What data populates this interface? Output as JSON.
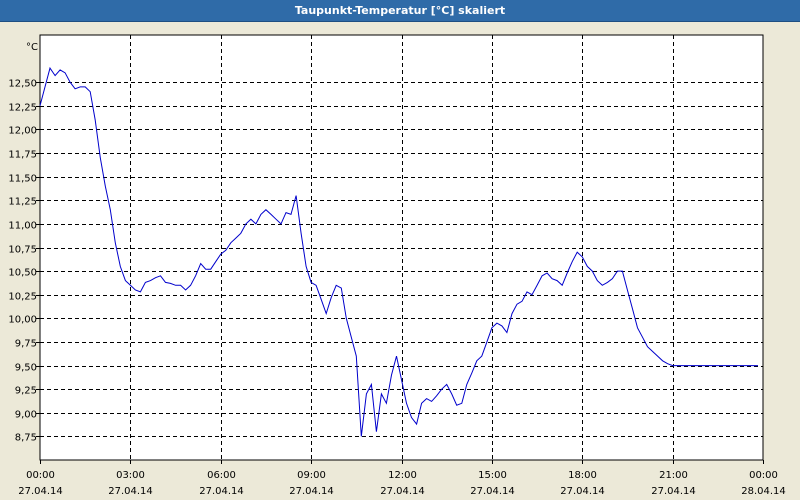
{
  "window": {
    "title": "Taupunkt-Temperatur [°C] skaliert"
  },
  "colors": {
    "title_bar": "#2F6BA8",
    "line": "#0000CC",
    "plot_background": "#FFFFFF",
    "grid": "#000000"
  },
  "chart_data": {
    "type": "line",
    "title": "Taupunkt-Temperatur [°C] skaliert",
    "ylabel": "°C",
    "xlabel": "",
    "ylim": [
      8.5,
      13.0
    ],
    "xlim": [
      "27.04.14 00:00",
      "28.04.14 00:00"
    ],
    "grid": true,
    "y_ticks": [
      "8,75",
      "9,00",
      "9,25",
      "9,50",
      "9,75",
      "10,00",
      "10,25",
      "10,50",
      "10,75",
      "11,00",
      "11,25",
      "11,50",
      "11,75",
      "12,00",
      "12,25",
      "12,50"
    ],
    "x_ticks": [
      {
        "time": "00:00",
        "date": "27.04.14"
      },
      {
        "time": "03:00",
        "date": "27.04.14"
      },
      {
        "time": "06:00",
        "date": "27.04.14"
      },
      {
        "time": "09:00",
        "date": "27.04.14"
      },
      {
        "time": "12:00",
        "date": "27.04.14"
      },
      {
        "time": "15:00",
        "date": "27.04.14"
      },
      {
        "time": "18:00",
        "date": "27.04.14"
      },
      {
        "time": "21:00",
        "date": "27.04.14"
      },
      {
        "time": "00:00",
        "date": "28.04.14"
      }
    ],
    "series": [
      {
        "x": [
          "00:00",
          "00:10",
          "00:20",
          "00:30",
          "00:40",
          "00:50",
          "01:00",
          "01:10",
          "01:20",
          "01:30",
          "01:40",
          "01:50",
          "02:00",
          "02:10",
          "02:20",
          "02:30",
          "02:40",
          "02:50",
          "03:00",
          "03:10",
          "03:20",
          "03:30",
          "03:40",
          "03:50",
          "04:00",
          "04:10",
          "04:20",
          "04:30",
          "04:40",
          "04:50",
          "05:00",
          "05:10",
          "05:20",
          "05:30",
          "05:40",
          "05:50",
          "06:00",
          "06:10",
          "06:20",
          "06:30",
          "06:40",
          "06:50",
          "07:00",
          "07:10",
          "07:20",
          "07:30",
          "07:40",
          "07:50",
          "08:00",
          "08:10",
          "08:20",
          "08:30",
          "08:40",
          "08:50",
          "09:00",
          "09:10",
          "09:20",
          "09:30",
          "09:40",
          "09:50",
          "10:00",
          "10:10",
          "10:20",
          "10:30",
          "10:40",
          "10:50",
          "11:00",
          "11:10",
          "11:20",
          "11:30",
          "11:40",
          "11:50",
          "12:00",
          "12:10",
          "12:20",
          "12:30",
          "12:40",
          "12:50",
          "13:00",
          "13:10",
          "13:20",
          "13:30",
          "13:40",
          "13:50",
          "14:00",
          "14:10",
          "14:20",
          "14:30",
          "14:40",
          "14:50",
          "15:00",
          "15:10",
          "15:20",
          "15:30",
          "15:40",
          "15:50",
          "16:00",
          "16:10",
          "16:20",
          "16:30",
          "16:40",
          "16:50",
          "17:00",
          "17:10",
          "17:20",
          "17:30",
          "17:40",
          "17:50",
          "18:00",
          "18:10",
          "18:20",
          "18:30",
          "18:40",
          "18:50",
          "19:00",
          "19:10",
          "19:20",
          "19:30",
          "19:40",
          "19:50",
          "20:00",
          "20:10",
          "20:20",
          "20:30",
          "20:40",
          "20:50",
          "21:00",
          "21:10",
          "21:20",
          "21:30",
          "21:40",
          "21:50",
          "22:00",
          "22:10",
          "22:20",
          "22:30",
          "22:40",
          "22:50",
          "23:00",
          "23:10",
          "23:20",
          "23:30",
          "23:40",
          "23:50"
        ],
        "y": [
          12.25,
          12.45,
          12.65,
          12.57,
          12.63,
          12.6,
          12.5,
          12.43,
          12.45,
          12.45,
          12.4,
          12.1,
          11.7,
          11.4,
          11.15,
          10.8,
          10.55,
          10.4,
          10.35,
          10.3,
          10.28,
          10.38,
          10.4,
          10.43,
          10.45,
          10.38,
          10.37,
          10.35,
          10.35,
          10.3,
          10.35,
          10.45,
          10.58,
          10.52,
          10.52,
          10.6,
          10.68,
          10.72,
          10.8,
          10.85,
          10.9,
          11.0,
          11.05,
          11.0,
          11.1,
          11.15,
          11.1,
          11.05,
          11.0,
          11.12,
          11.1,
          11.3,
          10.9,
          10.55,
          10.38,
          10.35,
          10.2,
          10.05,
          10.22,
          10.35,
          10.32,
          10.0,
          9.8,
          9.6,
          8.75,
          9.2,
          9.3,
          8.8,
          9.2,
          9.1,
          9.4,
          9.6,
          9.35,
          9.1,
          8.95,
          8.88,
          9.1,
          9.15,
          9.12,
          9.18,
          9.25,
          9.3,
          9.2,
          9.08,
          9.1,
          9.3,
          9.42,
          9.55,
          9.6,
          9.75,
          9.9,
          9.95,
          9.92,
          9.85,
          10.05,
          10.15,
          10.18,
          10.28,
          10.25,
          10.35,
          10.45,
          10.48,
          10.42,
          10.4,
          10.35,
          10.48,
          10.6,
          10.7,
          10.65,
          10.55,
          10.5,
          10.4,
          10.35,
          10.38,
          10.42,
          10.5,
          10.5,
          10.3,
          10.1,
          9.9,
          9.8,
          9.7,
          9.65,
          9.6,
          9.55,
          9.52,
          9.5,
          9.5,
          9.5,
          9.5,
          9.5,
          9.5,
          9.5,
          9.5,
          9.5,
          9.5,
          9.5,
          9.5,
          9.5,
          9.5,
          9.5,
          9.5,
          9.5,
          9.5
        ]
      }
    ]
  }
}
